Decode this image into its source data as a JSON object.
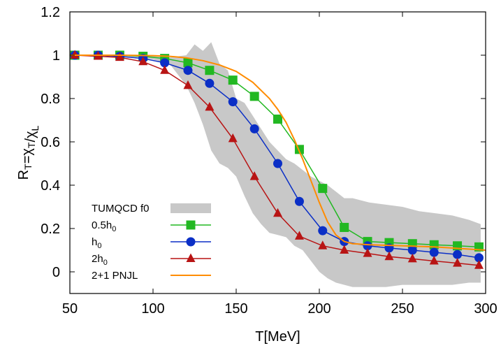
{
  "chart_data": {
    "type": "line",
    "xlabel": "T[MeV]",
    "ylabel": "R_T=χ_T/χ_L",
    "xlim": [
      50,
      300
    ],
    "ylim": [
      -0.1,
      1.2
    ],
    "xticks": [
      50,
      100,
      150,
      200,
      250,
      300
    ],
    "yticks": [
      0,
      0.2,
      0.4,
      0.6,
      0.8,
      1,
      1.2
    ],
    "grid": false,
    "legend_position": "bottom-left",
    "series": [
      {
        "name": "TUMQCD f0",
        "kind": "band",
        "color": "#c8c8c8",
        "x": [
          52,
          80,
          100,
          110,
          120,
          125,
          130,
          135,
          140,
          145,
          150,
          155,
          160,
          165,
          170,
          175,
          180,
          185,
          190,
          195,
          200,
          205,
          210,
          215,
          220,
          230,
          240,
          250,
          260,
          270,
          280,
          290,
          297
        ],
        "upper": [
          1.0,
          1.0,
          1.0,
          0.99,
          1.0,
          1.05,
          1.02,
          1.06,
          0.96,
          0.93,
          0.8,
          0.78,
          0.72,
          0.66,
          0.6,
          0.56,
          0.52,
          0.5,
          0.47,
          0.44,
          0.42,
          0.4,
          0.37,
          0.34,
          0.34,
          0.32,
          0.31,
          0.3,
          0.28,
          0.27,
          0.26,
          0.24,
          0.22
        ],
        "lower": [
          1.0,
          1.0,
          0.98,
          0.96,
          0.86,
          0.78,
          0.68,
          0.56,
          0.5,
          0.48,
          0.44,
          0.35,
          0.27,
          0.22,
          0.18,
          0.17,
          0.16,
          0.12,
          0.1,
          0.05,
          0.0,
          -0.03,
          -0.05,
          -0.06,
          -0.07,
          -0.07,
          -0.07,
          -0.06,
          -0.06,
          -0.06,
          -0.06,
          -0.05,
          -0.05
        ]
      },
      {
        "name": "0.5h_0",
        "color": "#22b822",
        "marker": "square",
        "x": [
          53,
          67,
          80,
          94,
          107,
          121,
          134,
          148,
          161,
          175,
          188,
          202,
          215,
          229,
          242,
          256,
          269,
          283,
          296
        ],
        "y": [
          1.0,
          1.0,
          1.0,
          0.995,
          0.985,
          0.965,
          0.93,
          0.885,
          0.81,
          0.705,
          0.565,
          0.385,
          0.205,
          0.14,
          0.135,
          0.13,
          0.125,
          0.12,
          0.115
        ]
      },
      {
        "name": "h_0",
        "color": "#0b2fc6",
        "marker": "circle",
        "x": [
          53,
          67,
          80,
          94,
          107,
          121,
          134,
          148,
          161,
          175,
          188,
          202,
          215,
          229,
          242,
          256,
          269,
          283,
          296
        ],
        "y": [
          1.0,
          1.0,
          0.995,
          0.985,
          0.965,
          0.93,
          0.87,
          0.785,
          0.66,
          0.5,
          0.325,
          0.19,
          0.14,
          0.12,
          0.11,
          0.1,
          0.09,
          0.08,
          0.065
        ]
      },
      {
        "name": "2h_0",
        "color": "#b81414",
        "marker": "triangle",
        "x": [
          53,
          67,
          80,
          94,
          107,
          121,
          134,
          148,
          161,
          175,
          188,
          202,
          215,
          229,
          242,
          256,
          269,
          283,
          296
        ],
        "y": [
          1.0,
          0.995,
          0.99,
          0.97,
          0.93,
          0.86,
          0.76,
          0.615,
          0.44,
          0.27,
          0.165,
          0.12,
          0.1,
          0.085,
          0.07,
          0.06,
          0.05,
          0.04,
          0.03
        ]
      },
      {
        "name": "2+1 PNJL",
        "color": "#ff8c00",
        "marker": "none",
        "x": [
          50,
          80,
          100,
          110,
          120,
          130,
          140,
          150,
          160,
          170,
          175,
          180,
          185,
          190,
          195,
          200,
          205,
          210,
          215,
          220,
          230,
          250,
          270,
          300
        ],
        "y": [
          1.0,
          1.0,
          0.998,
          0.995,
          0.988,
          0.975,
          0.955,
          0.925,
          0.875,
          0.8,
          0.75,
          0.69,
          0.61,
          0.52,
          0.42,
          0.32,
          0.23,
          0.17,
          0.14,
          0.13,
          0.125,
          0.12,
          0.115,
          0.1
        ]
      }
    ]
  }
}
